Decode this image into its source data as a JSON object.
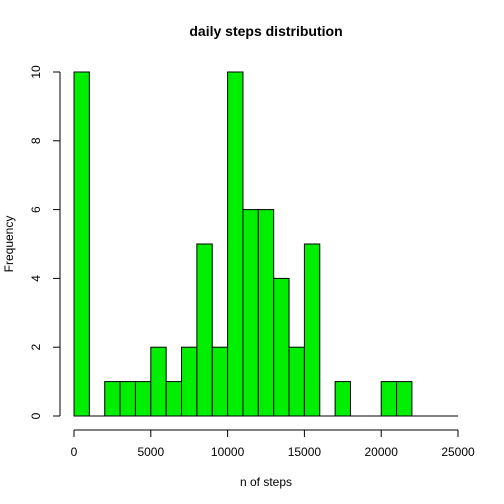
{
  "chart_data": {
    "type": "bar",
    "title": "daily steps distribution",
    "xlabel": "n of steps",
    "ylabel": "Frequency",
    "bar_color": "#00ee00",
    "bin_width": 1000,
    "bin_starts": [
      0,
      1000,
      2000,
      3000,
      4000,
      5000,
      6000,
      7000,
      8000,
      9000,
      10000,
      11000,
      12000,
      13000,
      14000,
      15000,
      16000,
      17000,
      18000,
      19000,
      20000,
      21000
    ],
    "values": [
      10,
      0,
      1,
      1,
      1,
      2,
      1,
      2,
      5,
      2,
      10,
      6,
      6,
      4,
      2,
      5,
      0,
      1,
      0,
      0,
      1,
      1
    ],
    "xlim": [
      0,
      25000
    ],
    "ylim": [
      0,
      10
    ],
    "x_ticks": [
      "0",
      "5000",
      "10000",
      "15000",
      "20000",
      "25000"
    ],
    "y_ticks": [
      "0",
      "2",
      "4",
      "6",
      "8",
      "10"
    ],
    "grid": false
  }
}
